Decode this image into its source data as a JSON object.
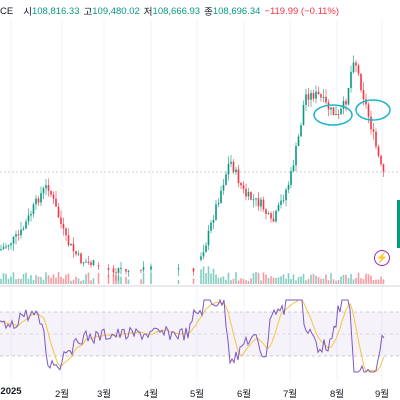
{
  "header": {
    "symbol_fragment": "CE",
    "open_label": "시",
    "open_value": "108,816.33",
    "high_label": "고",
    "high_value": "109,480.02",
    "low_label": "저",
    "low_value": "108,666.93",
    "close_label": "종",
    "close_value": "108,696.34",
    "change": "−119.99 (−0.11%)"
  },
  "colors": {
    "up": "#089981",
    "down": "#f23645",
    "rsi_line": "#7e57c2",
    "rsi_ma": "#f5c542",
    "annotation": "#1bb5c7"
  },
  "icons": {
    "alert": "lightning-icon"
  },
  "x_axis": {
    "months": [
      {
        "label": "2025",
        "year": true
      },
      {
        "label": "2월"
      },
      {
        "label": "3월"
      },
      {
        "label": "4월"
      },
      {
        "label": "5월"
      },
      {
        "label": "6월"
      },
      {
        "label": "7월"
      },
      {
        "label": "8월"
      },
      {
        "label": "9월"
      }
    ]
  }
}
